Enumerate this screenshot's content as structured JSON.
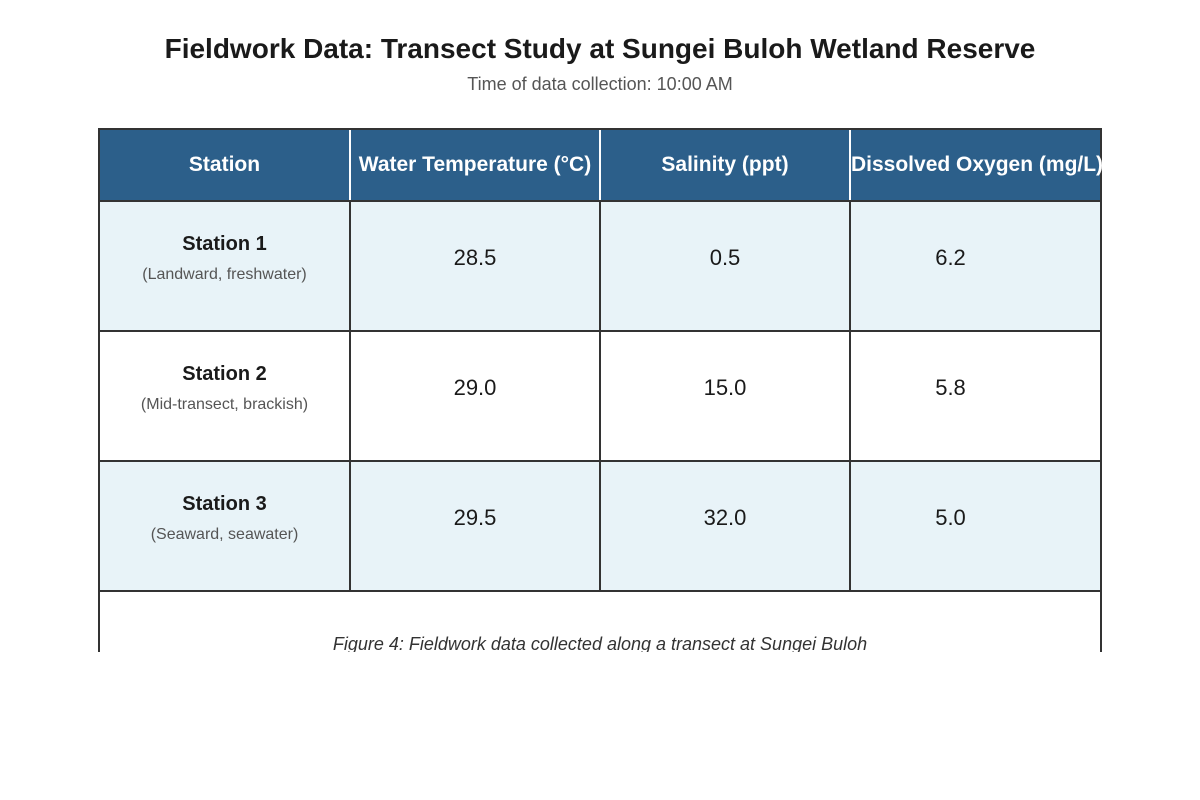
{
  "header": {
    "title": "Fieldwork Data: Transect Study at Sungei Buloh Wetland Reserve",
    "subtitle": "Time of data collection: 10:00 AM"
  },
  "table": {
    "columns": [
      "Station",
      "Water Temperature (°C)",
      "Salinity (ppt)",
      "Dissolved Oxygen (mg/L)"
    ],
    "rows": [
      {
        "station": "Station 1",
        "description": "(Landward, freshwater)",
        "temperature": "28.5",
        "salinity": "0.5",
        "oxygen": "6.2"
      },
      {
        "station": "Station 2",
        "description": "(Mid-transect, brackish)",
        "temperature": "29.0",
        "salinity": "15.0",
        "oxygen": "5.8"
      },
      {
        "station": "Station 3",
        "description": "(Seaward, seawater)",
        "temperature": "29.5",
        "salinity": "32.0",
        "oxygen": "5.0"
      }
    ]
  },
  "caption": "Figure 4: Fieldwork data collected along a transect at Sungei Buloh",
  "colors": {
    "header_bg": "#2c5f8a",
    "row_alt_bg": "#e8f3f8",
    "border": "#333333"
  }
}
